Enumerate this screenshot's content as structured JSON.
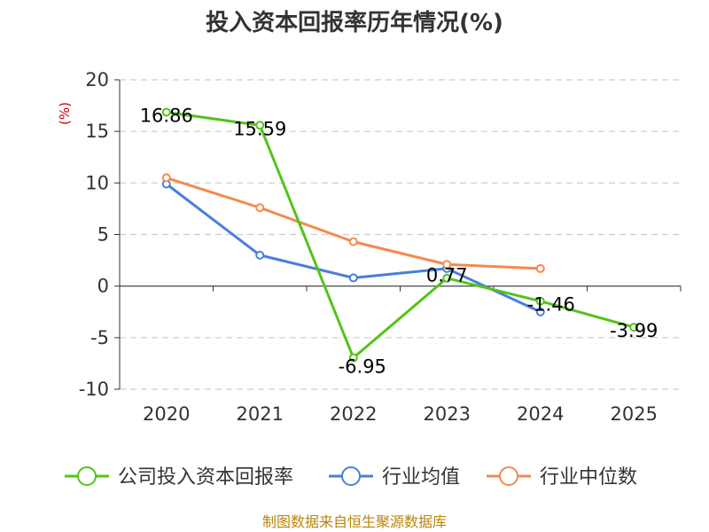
{
  "chart_data": {
    "type": "line",
    "title": "投入资本回报率历年情况(%)",
    "ylabel": "(%)",
    "xlabel": "",
    "categories": [
      "2020",
      "2021",
      "2022",
      "2023",
      "2024",
      "2025"
    ],
    "ylim": [
      -10,
      20
    ],
    "yticks": [
      20,
      15,
      10,
      5,
      0,
      -5,
      -10
    ],
    "grid": true,
    "legend_position": "bottom",
    "series": [
      {
        "name": "公司投入资本回报率",
        "color": "#52c41a",
        "values": [
          16.86,
          15.59,
          -6.95,
          0.77,
          -1.46,
          -3.99
        ],
        "labels": [
          "16.86",
          "15.59",
          "-6.95",
          "0.77",
          "-1.46",
          "-3.99"
        ]
      },
      {
        "name": "行业均值",
        "color": "#4a7fd9",
        "values": [
          9.9,
          3.0,
          0.8,
          1.7,
          -2.5,
          null
        ]
      },
      {
        "name": "行业中位数",
        "color": "#f5894f",
        "values": [
          10.5,
          7.6,
          4.3,
          2.1,
          1.7,
          null
        ]
      }
    ]
  },
  "source": "制图数据来自恒生聚源数据库"
}
